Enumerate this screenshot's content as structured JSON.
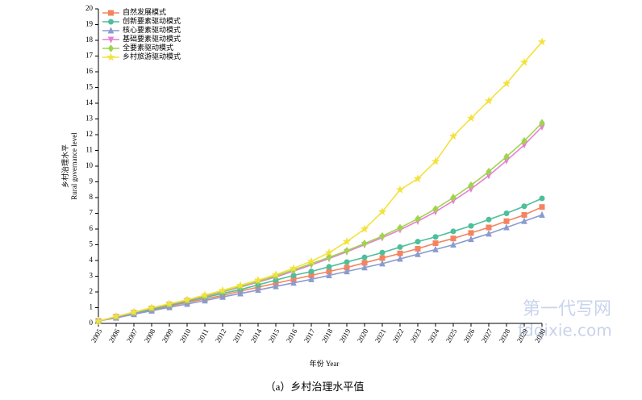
{
  "chart_data": {
    "type": "line",
    "ylabel": [
      "乡村治理水平",
      "Rural governance level"
    ],
    "xlabel": "年份 Year",
    "caption": "（a）乡村治理水平值",
    "watermark": [
      "第一代写网",
      "fdqixie.com"
    ],
    "x": [
      2005,
      2006,
      2007,
      2008,
      2009,
      2010,
      2011,
      2012,
      2013,
      2014,
      2015,
      2016,
      2017,
      2018,
      2019,
      2020,
      2021,
      2022,
      2023,
      2024,
      2025,
      2026,
      2027,
      2028,
      2029,
      2030
    ],
    "xlim": [
      2005,
      2030
    ],
    "xticks": [
      2005,
      2006,
      2007,
      2008,
      2009,
      2010,
      2011,
      2012,
      2013,
      2014,
      2015,
      2016,
      2017,
      2018,
      2019,
      2020,
      2021,
      2022,
      2023,
      2024,
      2025,
      2026,
      2027,
      2028,
      2029,
      2030
    ],
    "ylim": [
      0,
      20
    ],
    "yticks": [
      0,
      1,
      2,
      3,
      4,
      5,
      6,
      7,
      8,
      9,
      10,
      11,
      12,
      13,
      14,
      15,
      16,
      17,
      18,
      19,
      20
    ],
    "legend": "upper left",
    "series": [
      {
        "name": "自然发展模式",
        "color": "#f4845f",
        "marker": "square",
        "values": [
          0.15,
          0.38,
          0.62,
          0.85,
          1.1,
          1.33,
          1.55,
          1.78,
          2.05,
          2.3,
          2.55,
          2.8,
          3.05,
          3.3,
          3.55,
          3.85,
          4.15,
          4.45,
          4.75,
          5.1,
          5.4,
          5.75,
          6.1,
          6.5,
          6.9,
          7.4
        ]
      },
      {
        "name": "创新要素驱动模式",
        "color": "#4dbf9a",
        "marker": "circle",
        "values": [
          0.15,
          0.4,
          0.65,
          0.9,
          1.15,
          1.4,
          1.65,
          1.9,
          2.15,
          2.45,
          2.75,
          3.05,
          3.3,
          3.6,
          3.9,
          4.2,
          4.5,
          4.85,
          5.2,
          5.5,
          5.85,
          6.2,
          6.6,
          7.0,
          7.45,
          7.95
        ]
      },
      {
        "name": "核心要素驱动模式",
        "color": "#8a9bd0",
        "marker": "triangle-up",
        "values": [
          0.15,
          0.35,
          0.58,
          0.8,
          1.02,
          1.23,
          1.45,
          1.68,
          1.9,
          2.12,
          2.35,
          2.58,
          2.8,
          3.05,
          3.3,
          3.55,
          3.8,
          4.1,
          4.4,
          4.7,
          5.0,
          5.35,
          5.7,
          6.1,
          6.5,
          6.9
        ]
      },
      {
        "name": "基础要素驱动模式",
        "color": "#e67fd4",
        "marker": "triangle-down",
        "values": [
          0.15,
          0.42,
          0.68,
          0.95,
          1.2,
          1.45,
          1.72,
          2.0,
          2.3,
          2.62,
          2.95,
          3.32,
          3.72,
          4.12,
          4.55,
          5.0,
          5.45,
          5.95,
          6.5,
          7.1,
          7.8,
          8.55,
          9.4,
          10.35,
          11.35,
          12.5
        ]
      },
      {
        "name": "全要素驱动模式",
        "color": "#9fd54a",
        "marker": "diamond",
        "values": [
          0.15,
          0.43,
          0.7,
          0.97,
          1.22,
          1.48,
          1.75,
          2.03,
          2.35,
          2.68,
          3.02,
          3.4,
          3.8,
          4.2,
          4.62,
          5.08,
          5.55,
          6.08,
          6.65,
          7.28,
          8.0,
          8.78,
          9.65,
          10.6,
          11.6,
          12.75
        ]
      },
      {
        "name": "乡村旅游驱动模式",
        "color": "#f3e23d",
        "marker": "star",
        "values": [
          0.15,
          0.45,
          0.72,
          1.0,
          1.25,
          1.5,
          1.8,
          2.1,
          2.42,
          2.75,
          3.1,
          3.5,
          3.95,
          4.5,
          5.2,
          6.0,
          7.1,
          8.5,
          9.2,
          10.3,
          11.9,
          13.05,
          14.15,
          15.25,
          16.6,
          17.9
        ]
      }
    ]
  }
}
